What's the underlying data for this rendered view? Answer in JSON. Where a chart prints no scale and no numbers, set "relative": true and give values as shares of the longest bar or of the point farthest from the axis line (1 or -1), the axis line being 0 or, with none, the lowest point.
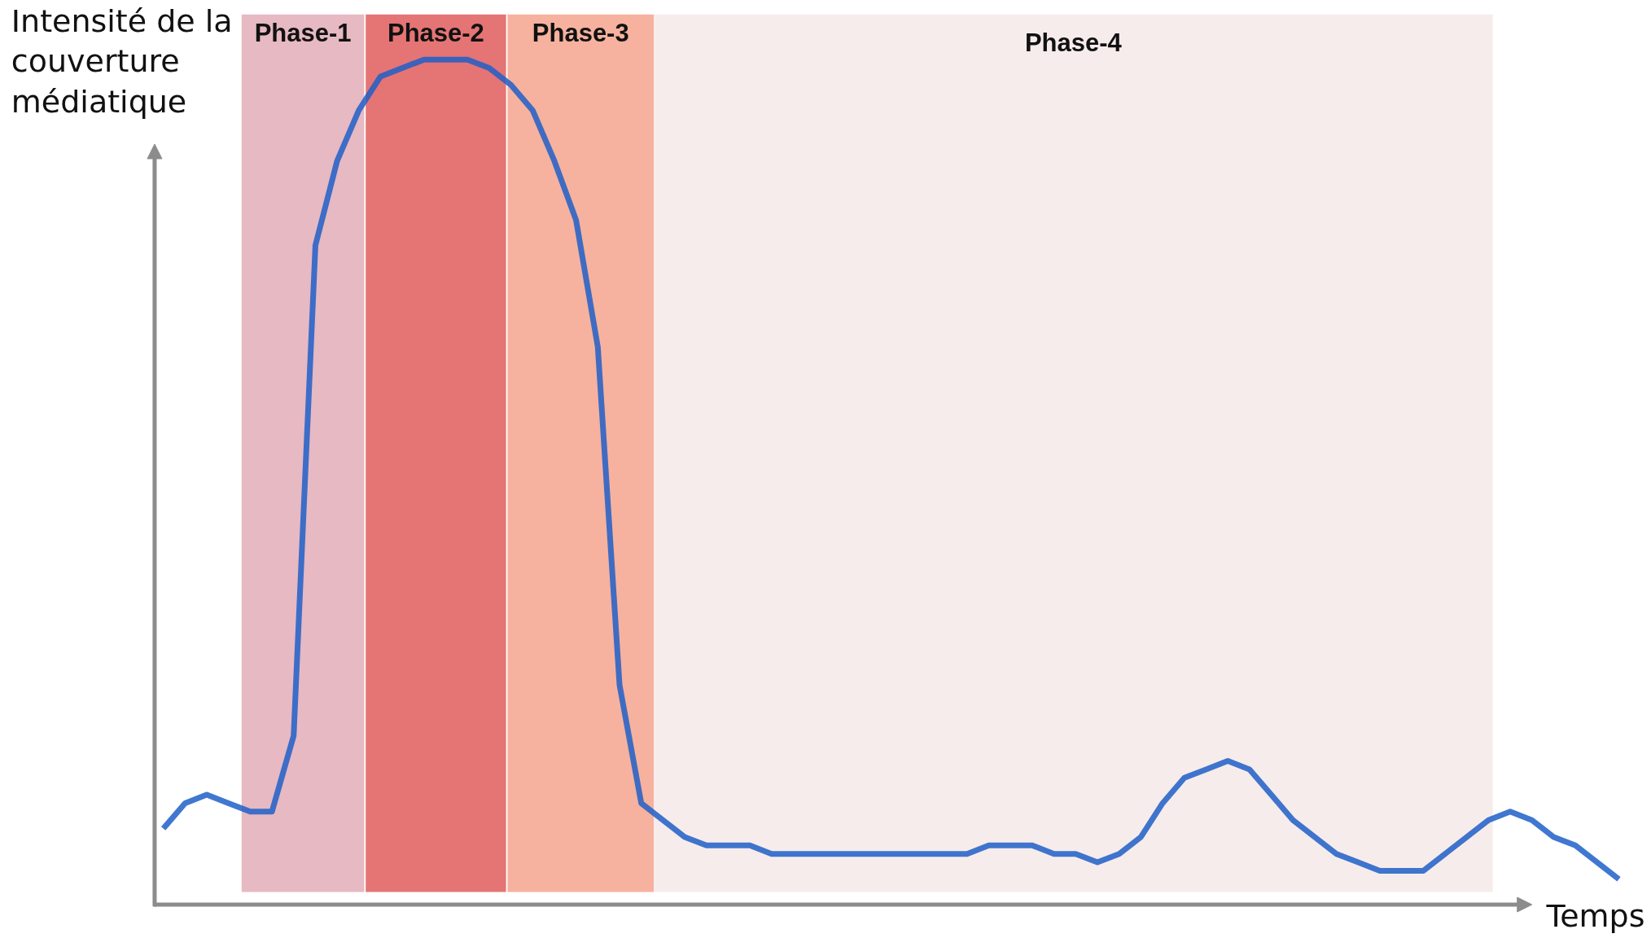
{
  "chart_data": {
    "type": "line",
    "relative": true,
    "xlabel": "Temps",
    "ylabel": "Intensité de la couverture médiatique",
    "categories": [
      null,
      null,
      null,
      null,
      null,
      null,
      null,
      null,
      null,
      null,
      null,
      null,
      null,
      null,
      null,
      null,
      null,
      null,
      null,
      null,
      null,
      null,
      null,
      null,
      null,
      null,
      null,
      null,
      null,
      null,
      null,
      null,
      null,
      null,
      null,
      null,
      null,
      null,
      null,
      null,
      null,
      null,
      null,
      null,
      null,
      null,
      null,
      null,
      null,
      null,
      null,
      null,
      null,
      null,
      null,
      null,
      null,
      null,
      null,
      null,
      null,
      null,
      null,
      null,
      null,
      null,
      null,
      null
    ],
    "series": [
      {
        "color": "#1f5fc8",
        "values": [
          0.09,
          0.12,
          0.13,
          0.12,
          0.11,
          0.11,
          0.2,
          0.78,
          0.88,
          0.94,
          0.98,
          0.99,
          1.0,
          1.0,
          1.0,
          0.99,
          0.97,
          0.94,
          0.88,
          0.81,
          0.66,
          0.26,
          0.12,
          0.1,
          0.08,
          0.07,
          0.07,
          0.07,
          0.06,
          0.06,
          0.06,
          0.06,
          0.06,
          0.06,
          0.06,
          0.06,
          0.06,
          0.06,
          0.07,
          0.07,
          0.07,
          0.06,
          0.06,
          0.05,
          0.06,
          0.08,
          0.12,
          0.15,
          0.16,
          0.17,
          0.16,
          0.13,
          0.1,
          0.08,
          0.06,
          0.05,
          0.04,
          0.04,
          0.04,
          0.06,
          0.08,
          0.1,
          0.11,
          0.1,
          0.08,
          0.07,
          0.05,
          0.03
        ]
      }
    ],
    "annotations": [
      "Phase-1",
      "Phase-2",
      "Phase-3",
      "Phase-4"
    ],
    "grid": false,
    "line_style": "solid",
    "marker": "none"
  }
}
